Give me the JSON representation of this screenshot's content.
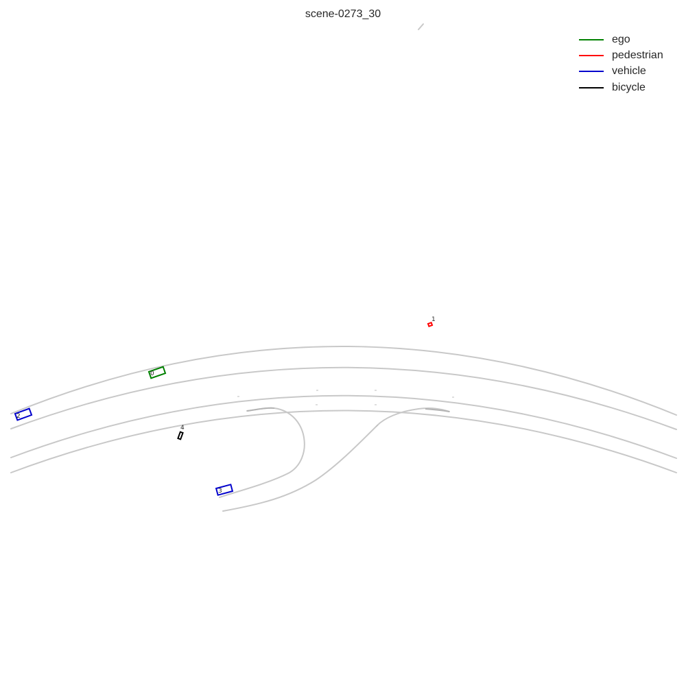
{
  "title": "scene-0273_30",
  "legend": [
    {
      "label": "ego",
      "color": "#008000"
    },
    {
      "label": "pedestrian",
      "color": "#ff0000"
    },
    {
      "label": "vehicle",
      "color": "#0000cc"
    },
    {
      "label": "bicycle",
      "color": "#000000"
    }
  ],
  "agents": [
    {
      "id": "0",
      "category": "ego",
      "color": "#008000"
    },
    {
      "id": "1",
      "category": "pedestrian",
      "color": "#ff0000"
    },
    {
      "id": "2",
      "category": "vehicle",
      "color": "#0000cc"
    },
    {
      "id": "3",
      "category": "vehicle",
      "color": "#0000cc"
    },
    {
      "id": "4",
      "category": "bicycle",
      "color": "#000000"
    }
  ]
}
